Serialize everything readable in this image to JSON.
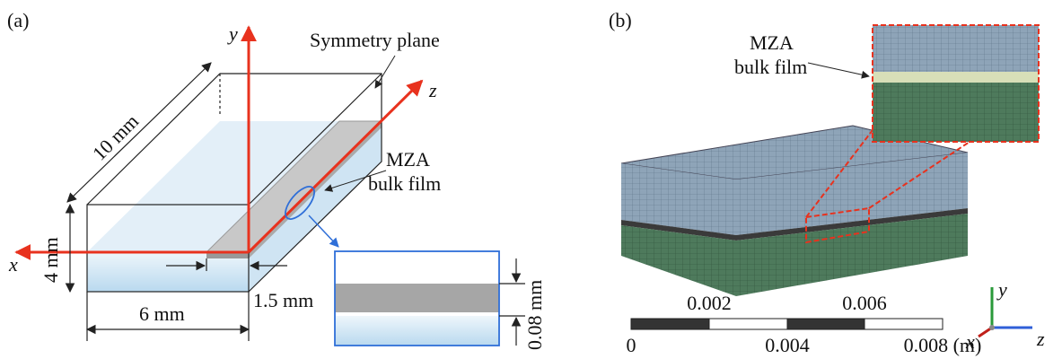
{
  "panel_a": {
    "label": "(a)",
    "axes": {
      "x": "x",
      "y": "y",
      "z": "z"
    },
    "symmetry_plane": "Symmetry plane",
    "film_label": [
      "MZA",
      "bulk film"
    ],
    "dimensions": {
      "length": "10 mm",
      "height": "4 mm",
      "width": "6 mm",
      "film_width": "1.5 mm",
      "film_thickness": "0.08 mm"
    }
  },
  "panel_b": {
    "label": "(b)",
    "film_label": [
      "MZA",
      "bulk film"
    ],
    "scale_bar": {
      "top_labels": [
        "0.002",
        "0.006"
      ],
      "bottom_labels": [
        "0",
        "0.004",
        "0.008 (m)"
      ]
    },
    "triad": {
      "y": "y",
      "x": "x",
      "z": "z"
    }
  }
}
